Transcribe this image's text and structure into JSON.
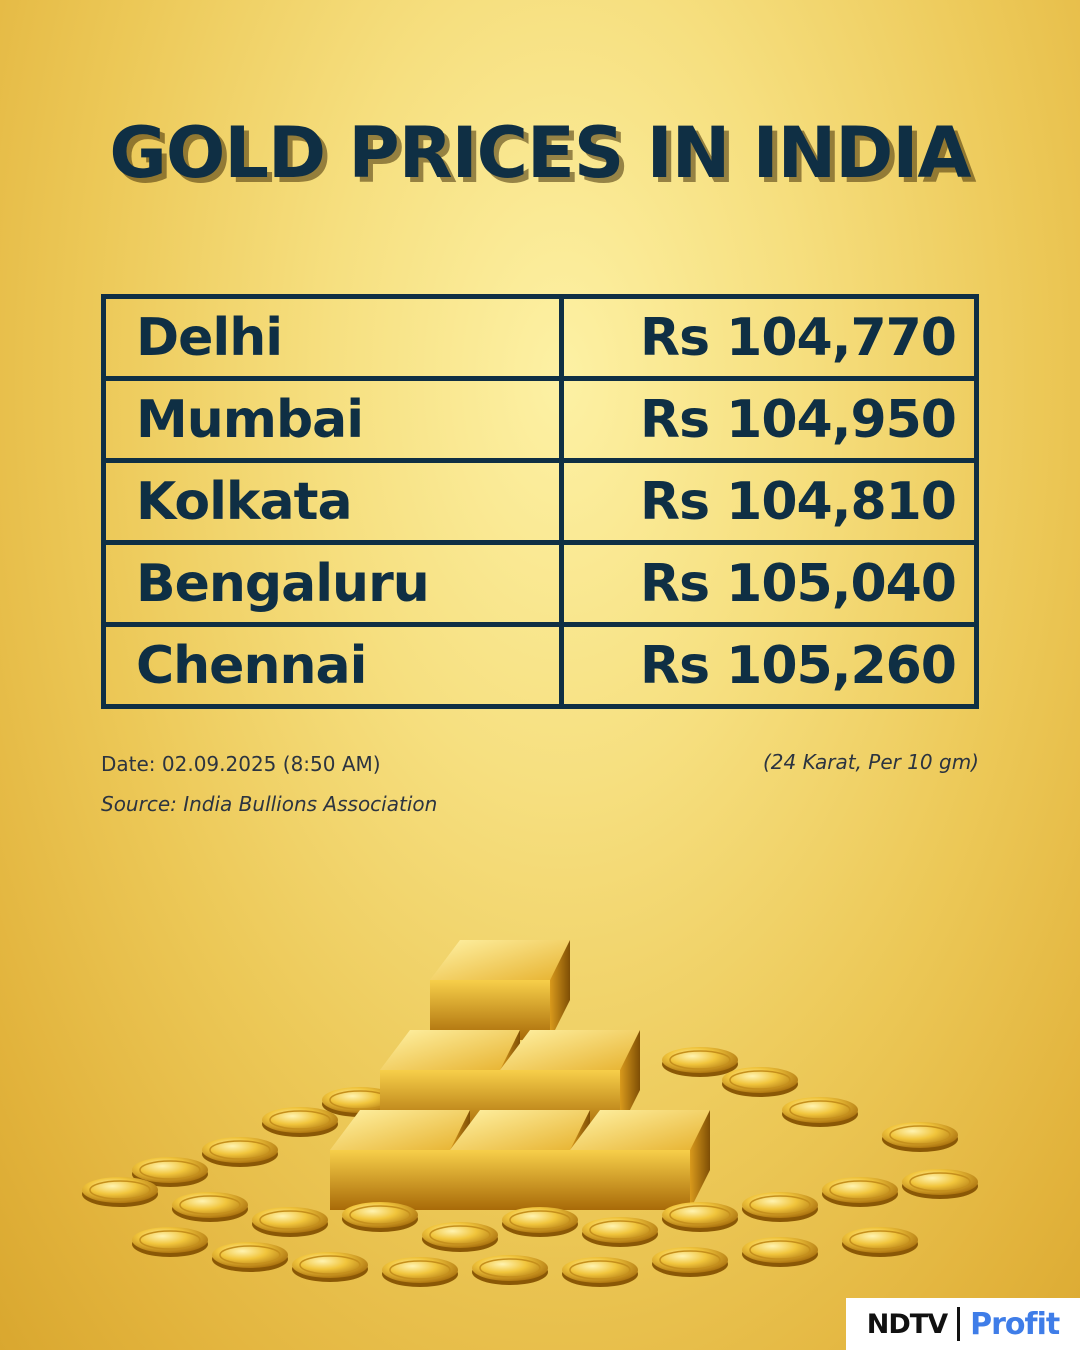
{
  "title": "GOLD PRICES IN INDIA",
  "rows": [
    {
      "city": "Delhi",
      "price": "Rs 104,770"
    },
    {
      "city": "Mumbai",
      "price": "Rs 104,950"
    },
    {
      "city": "Kolkata",
      "price": "Rs 104,810"
    },
    {
      "city": "Bengaluru",
      "price": "Rs 105,040"
    },
    {
      "city": "Chennai",
      "price": "Rs 105,260"
    }
  ],
  "date": "Date: 02.09.2025 (8:50 AM)",
  "unit": "(24 Karat, Per 10 gm)",
  "source": "Source: India Bullions Association",
  "logo": {
    "brand": "NDTV",
    "product": "Profit"
  },
  "colors": {
    "text": "#0f2f44",
    "background": "#f6df7f",
    "profit": "#3f7de8"
  }
}
